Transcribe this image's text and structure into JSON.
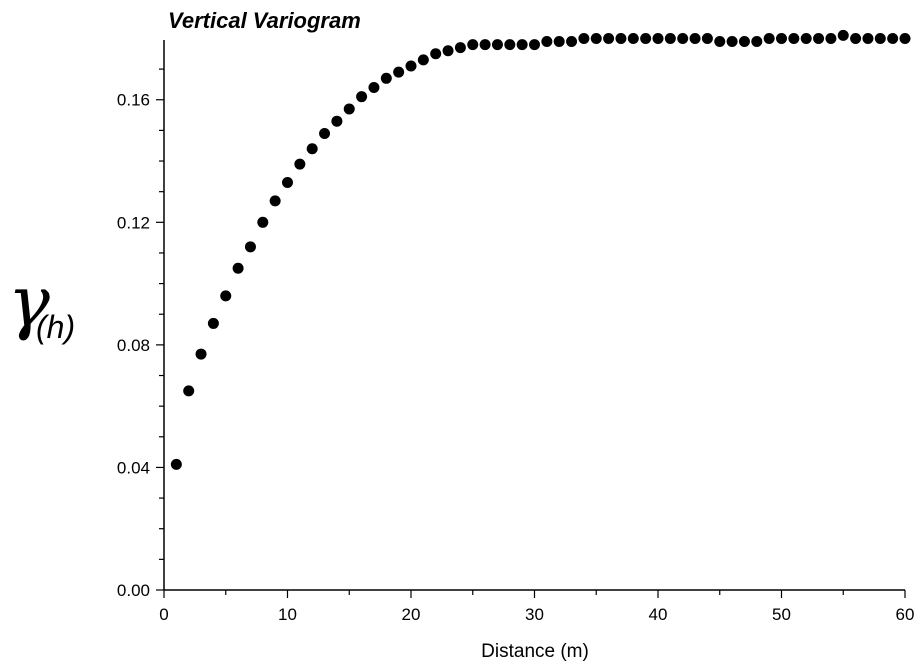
{
  "chart_data": {
    "type": "scatter",
    "title": "Vertical Variogram",
    "xlabel": "Distance (m)",
    "ylabel_symbol": "γ",
    "ylabel_subscript": "(h)",
    "xlim": [
      0,
      60
    ],
    "ylim": [
      0,
      0.18
    ],
    "x_ticks": [
      "0",
      "10",
      "20",
      "30",
      "40",
      "50",
      "60"
    ],
    "y_ticks": [
      "0.00",
      "0.04",
      "0.08",
      "0.12",
      "0.16"
    ],
    "grid": false,
    "marker_color": "#000000",
    "x": [
      1,
      2,
      3,
      4,
      5,
      6,
      7,
      8,
      9,
      10,
      11,
      12,
      13,
      14,
      15,
      16,
      17,
      18,
      19,
      20,
      21,
      22,
      23,
      24,
      25,
      26,
      27,
      28,
      29,
      30,
      31,
      32,
      33,
      34,
      35,
      36,
      37,
      38,
      39,
      40,
      41,
      42,
      43,
      44,
      45,
      46,
      47,
      48,
      49,
      50,
      51,
      52,
      53,
      54,
      55,
      56,
      57,
      58,
      59,
      60
    ],
    "y": [
      0.041,
      0.065,
      0.077,
      0.087,
      0.096,
      0.105,
      0.112,
      0.12,
      0.127,
      0.133,
      0.139,
      0.144,
      0.149,
      0.153,
      0.157,
      0.161,
      0.164,
      0.167,
      0.169,
      0.171,
      0.173,
      0.175,
      0.176,
      0.177,
      0.178,
      0.178,
      0.178,
      0.178,
      0.178,
      0.178,
      0.179,
      0.179,
      0.179,
      0.18,
      0.18,
      0.18,
      0.18,
      0.18,
      0.18,
      0.18,
      0.18,
      0.18,
      0.18,
      0.18,
      0.179,
      0.179,
      0.179,
      0.179,
      0.18,
      0.18,
      0.18,
      0.18,
      0.18,
      0.18,
      0.181,
      0.18,
      0.18,
      0.18,
      0.18,
      0.18
    ]
  }
}
